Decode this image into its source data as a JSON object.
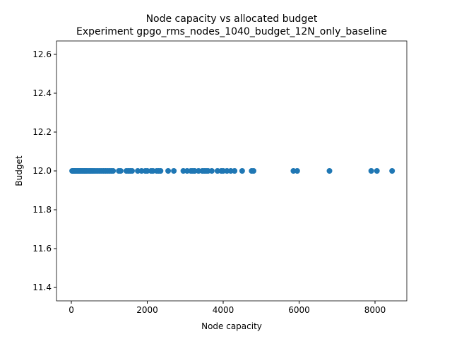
{
  "chart_data": {
    "type": "scatter",
    "title": "Node capacity vs allocated budget",
    "subtitle": "Experiment gpgo_rms_nodes_1040_budget_12N_only_baseline",
    "xlabel": "Node capacity",
    "ylabel": "Budget",
    "xlim": [
      -391,
      8837
    ],
    "ylim": [
      11.331,
      12.669
    ],
    "xticks": [
      0,
      2000,
      4000,
      6000,
      8000
    ],
    "yticks": [
      {
        "value": 11.4,
        "label": "11.4"
      },
      {
        "value": 11.6,
        "label": "11.6"
      },
      {
        "value": 11.8,
        "label": "11.8"
      },
      {
        "value": 12.0,
        "label": "12.0"
      },
      {
        "value": 12.2,
        "label": "12.2"
      },
      {
        "value": 12.4,
        "label": "12.4"
      },
      {
        "value": 12.6,
        "label": "12.6"
      }
    ],
    "color": "#1f77b4",
    "x": [
      20,
      40,
      60,
      80,
      100,
      130,
      160,
      190,
      220,
      250,
      280,
      310,
      340,
      370,
      400,
      440,
      480,
      520,
      560,
      600,
      650,
      700,
      750,
      800,
      850,
      900,
      950,
      1000,
      1050,
      1100,
      1250,
      1300,
      1450,
      1500,
      1550,
      1600,
      1750,
      1850,
      1950,
      2000,
      2100,
      2150,
      2250,
      2300,
      2350,
      2550,
      2700,
      2950,
      3050,
      3150,
      3200,
      3250,
      3350,
      3450,
      3500,
      3550,
      3600,
      3700,
      3850,
      3950,
      4000,
      4100,
      4200,
      4300,
      4500,
      4750,
      4800,
      5850,
      5950,
      6800,
      7900,
      8050,
      8450
    ],
    "y": [
      12,
      12,
      12,
      12,
      12,
      12,
      12,
      12,
      12,
      12,
      12,
      12,
      12,
      12,
      12,
      12,
      12,
      12,
      12,
      12,
      12,
      12,
      12,
      12,
      12,
      12,
      12,
      12,
      12,
      12,
      12,
      12,
      12,
      12,
      12,
      12,
      12,
      12,
      12,
      12,
      12,
      12,
      12,
      12,
      12,
      12,
      12,
      12,
      12,
      12,
      12,
      12,
      12,
      12,
      12,
      12,
      12,
      12,
      12,
      12,
      12,
      12,
      12,
      12,
      12,
      12,
      12,
      12,
      12,
      12,
      12,
      12,
      12
    ]
  }
}
